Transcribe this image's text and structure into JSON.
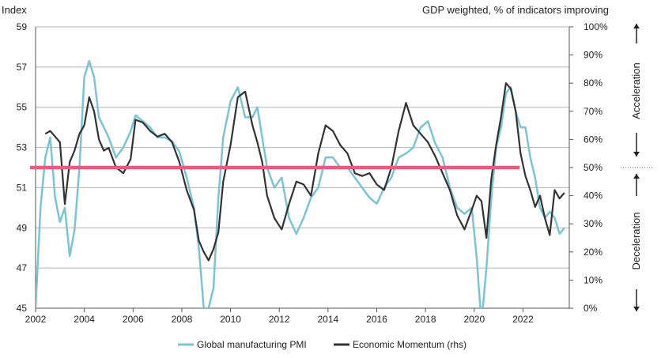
{
  "chart_data": {
    "type": "line",
    "left_axis_title": "Index",
    "right_axis_title": "GDP weighted, % of indicators improving",
    "grid": true,
    "legend_placement": "bottom",
    "ylim_left": [
      45,
      59
    ],
    "ylim_right": [
      0,
      100
    ],
    "xlim": [
      2002,
      2023.9
    ],
    "x_ticks": [
      "2002",
      "2004",
      "2006",
      "2008",
      "2010",
      "2012",
      "2014",
      "2016",
      "2018",
      "2020",
      "2022"
    ],
    "y_left_ticks": [
      "45",
      "47",
      "49",
      "51",
      "53",
      "55",
      "57",
      "59"
    ],
    "y_right_ticks": [
      "0%",
      "10%",
      "20%",
      "30%",
      "40%",
      "50%",
      "60%",
      "70%",
      "80%",
      "90%",
      "100%"
    ],
    "threshold_line": {
      "axis": "right",
      "value": 50,
      "color": "#e06080"
    },
    "side_labels": {
      "top": "Acceleration",
      "bottom": "Deceleration"
    },
    "series": [
      {
        "name": "Global manufacturing PMI",
        "axis": "left",
        "color": "#7cc4d4",
        "x": [
          2002.0,
          2002.2,
          2002.4,
          2002.6,
          2002.8,
          2003.0,
          2003.2,
          2003.4,
          2003.6,
          2003.8,
          2004.0,
          2004.2,
          2004.4,
          2004.6,
          2004.8,
          2005.0,
          2005.3,
          2005.6,
          2005.9,
          2006.1,
          2006.4,
          2006.7,
          2007.0,
          2007.3,
          2007.6,
          2007.9,
          2008.2,
          2008.5,
          2008.7,
          2008.9,
          2009.1,
          2009.3,
          2009.5,
          2009.7,
          2010.0,
          2010.3,
          2010.6,
          2010.9,
          2011.1,
          2011.3,
          2011.5,
          2011.8,
          2012.1,
          2012.4,
          2012.7,
          2013.0,
          2013.3,
          2013.6,
          2013.9,
          2014.2,
          2014.5,
          2014.8,
          2015.1,
          2015.4,
          2015.7,
          2016.0,
          2016.3,
          2016.6,
          2016.9,
          2017.2,
          2017.5,
          2017.8,
          2018.1,
          2018.4,
          2018.7,
          2019.0,
          2019.3,
          2019.6,
          2019.9,
          2020.1,
          2020.25,
          2020.35,
          2020.5,
          2020.7,
          2020.9,
          2021.1,
          2021.3,
          2021.5,
          2021.7,
          2021.9,
          2022.1,
          2022.3,
          2022.5,
          2022.7,
          2022.9,
          2023.1,
          2023.3,
          2023.5,
          2023.7
        ],
        "values": [
          45.0,
          50.0,
          52.5,
          53.5,
          50.5,
          49.3,
          50.0,
          47.6,
          48.9,
          52.0,
          56.5,
          57.3,
          56.5,
          54.5,
          54.0,
          53.5,
          52.5,
          53.0,
          53.8,
          54.6,
          54.3,
          54.0,
          53.5,
          53.5,
          53.3,
          52.8,
          51.5,
          50.0,
          48.0,
          45.0,
          45.0,
          46.0,
          50.5,
          53.5,
          55.3,
          56.0,
          54.5,
          54.5,
          55.0,
          53.5,
          52.0,
          51.0,
          51.5,
          49.5,
          48.7,
          49.5,
          50.5,
          51.0,
          52.5,
          52.5,
          52.0,
          52.0,
          51.5,
          51.0,
          50.5,
          50.2,
          51.0,
          51.5,
          52.5,
          52.7,
          53.0,
          54.0,
          54.3,
          53.2,
          52.5,
          51.0,
          50.0,
          49.7,
          50.0,
          47.5,
          45.0,
          45.0,
          47.0,
          50.5,
          53.0,
          54.0,
          55.7,
          56.0,
          54.8,
          54.0,
          54.0,
          52.5,
          51.5,
          50.0,
          49.5,
          49.8,
          49.5,
          48.7,
          49.0
        ]
      },
      {
        "name": "Economic Momentum (rhs)",
        "axis": "right",
        "color": "#333333",
        "x": [
          2002.4,
          2002.6,
          2002.8,
          2003.0,
          2003.2,
          2003.4,
          2003.6,
          2003.8,
          2004.0,
          2004.2,
          2004.4,
          2004.6,
          2004.8,
          2005.0,
          2005.3,
          2005.6,
          2005.9,
          2006.1,
          2006.4,
          2006.7,
          2007.0,
          2007.3,
          2007.6,
          2007.9,
          2008.2,
          2008.5,
          2008.7,
          2008.9,
          2009.1,
          2009.3,
          2009.5,
          2009.7,
          2010.0,
          2010.3,
          2010.6,
          2010.9,
          2011.1,
          2011.3,
          2011.5,
          2011.8,
          2012.1,
          2012.4,
          2012.7,
          2013.0,
          2013.3,
          2013.6,
          2013.9,
          2014.2,
          2014.5,
          2014.8,
          2015.1,
          2015.4,
          2015.7,
          2016.0,
          2016.3,
          2016.6,
          2016.9,
          2017.2,
          2017.5,
          2017.8,
          2018.1,
          2018.4,
          2018.7,
          2019.0,
          2019.3,
          2019.6,
          2019.9,
          2020.1,
          2020.3,
          2020.5,
          2020.7,
          2020.9,
          2021.1,
          2021.3,
          2021.5,
          2021.7,
          2021.9,
          2022.1,
          2022.3,
          2022.5,
          2022.7,
          2022.9,
          2023.1,
          2023.3,
          2023.5,
          2023.7
        ],
        "values": [
          62,
          63,
          61,
          59,
          37,
          52,
          56,
          62,
          65,
          75,
          70,
          60,
          56,
          57,
          50,
          48,
          53,
          67,
          66,
          63,
          61,
          62,
          59,
          52,
          42,
          35,
          24,
          20,
          17,
          21,
          27,
          45,
          58,
          75,
          77,
          65,
          59,
          52,
          40,
          32,
          28,
          37,
          45,
          44,
          40,
          55,
          65,
          63,
          58,
          55,
          48,
          47,
          48,
          44,
          42,
          50,
          63,
          73,
          65,
          62,
          59,
          54,
          48,
          42,
          33,
          28,
          35,
          40,
          38,
          25,
          46,
          58,
          68,
          80,
          78,
          70,
          55,
          47,
          42,
          36,
          40,
          32,
          26,
          42,
          39,
          41
        ]
      }
    ]
  }
}
